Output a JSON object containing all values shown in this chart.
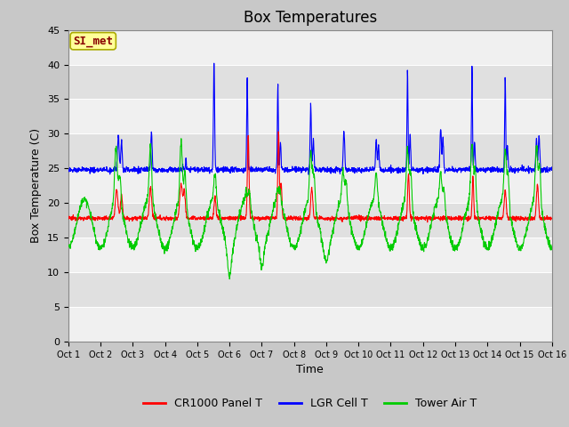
{
  "title": "Box Temperatures",
  "xlabel": "Time",
  "ylabel": "Box Temperature (C)",
  "ylim": [
    0,
    45
  ],
  "yticks": [
    0,
    5,
    10,
    15,
    20,
    25,
    30,
    35,
    40,
    45
  ],
  "x_labels": [
    "Oct 1",
    "Oct 2",
    "Oct 3",
    "Oct 4",
    "Oct 5",
    "Oct 6",
    "Oct 7",
    "Oct 8",
    "Oct 9",
    "Oct 10",
    "Oct 11",
    "Oct 12",
    "Oct 13",
    "Oct 14",
    "Oct 15",
    "Oct 16"
  ],
  "colors": {
    "CR1000": "#ff0000",
    "LGR": "#0000ff",
    "Tower": "#00cc00",
    "annotation_bg": "#ffff99",
    "annotation_border": "#aaaa00",
    "annotation_text": "#880000"
  },
  "band_colors": [
    "#f0f0f0",
    "#e0e0e0"
  ],
  "annotation_text": "SI_met",
  "legend_entries": [
    "CR1000 Panel T",
    "LGR Cell T",
    "Tower Air T"
  ],
  "n_days": 15,
  "n_points_per_day": 144,
  "title_fontsize": 12,
  "axis_label_fontsize": 9,
  "tick_fontsize": 8,
  "legend_fontsize": 9
}
